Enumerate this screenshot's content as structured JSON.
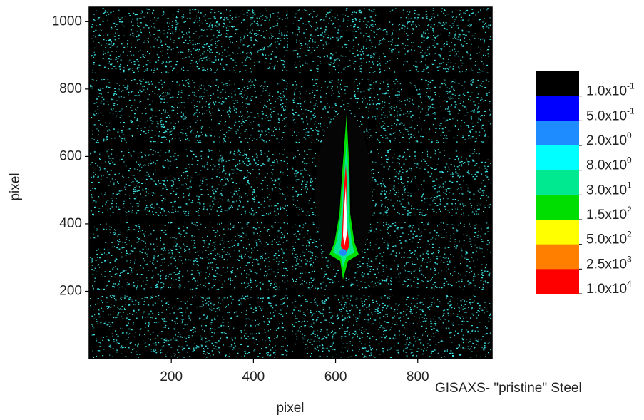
{
  "chart_data": {
    "type": "heatmap",
    "title": "GISAXS- \"pristine\" Steel",
    "x_label": "pixel",
    "y_label": "pixel",
    "xlim": [
      0,
      981
    ],
    "xticks": [
      200,
      400,
      600,
      800
    ],
    "ylim": [
      0,
      1043
    ],
    "yticks": [
      200,
      400,
      600,
      800,
      1000
    ],
    "colorbar": {
      "colors": [
        "#000000",
        "#0000ff",
        "#1e8cff",
        "#00ffff",
        "#00e890",
        "#00dd00",
        "#ffff00",
        "#ff8000",
        "#ff0000"
      ],
      "levels": [
        {
          "value": 0.1,
          "label": "1.0x10",
          "power": "-1"
        },
        {
          "value": 0.5,
          "label": "5.0x10",
          "power": "-1"
        },
        {
          "value": 2,
          "label": "2.0x10",
          "power": "0"
        },
        {
          "value": 8,
          "label": "8.0x10",
          "power": "0"
        },
        {
          "value": 30,
          "label": "3.0x10",
          "power": "1"
        },
        {
          "value": 150,
          "label": "1.5x10",
          "power": "2"
        },
        {
          "value": 500,
          "label": "5.0x10",
          "power": "2"
        },
        {
          "value": 2500,
          "label": "2.5x10",
          "power": "3"
        },
        {
          "value": 10000,
          "label": "1.0x10",
          "power": "4"
        }
      ]
    }
  }
}
